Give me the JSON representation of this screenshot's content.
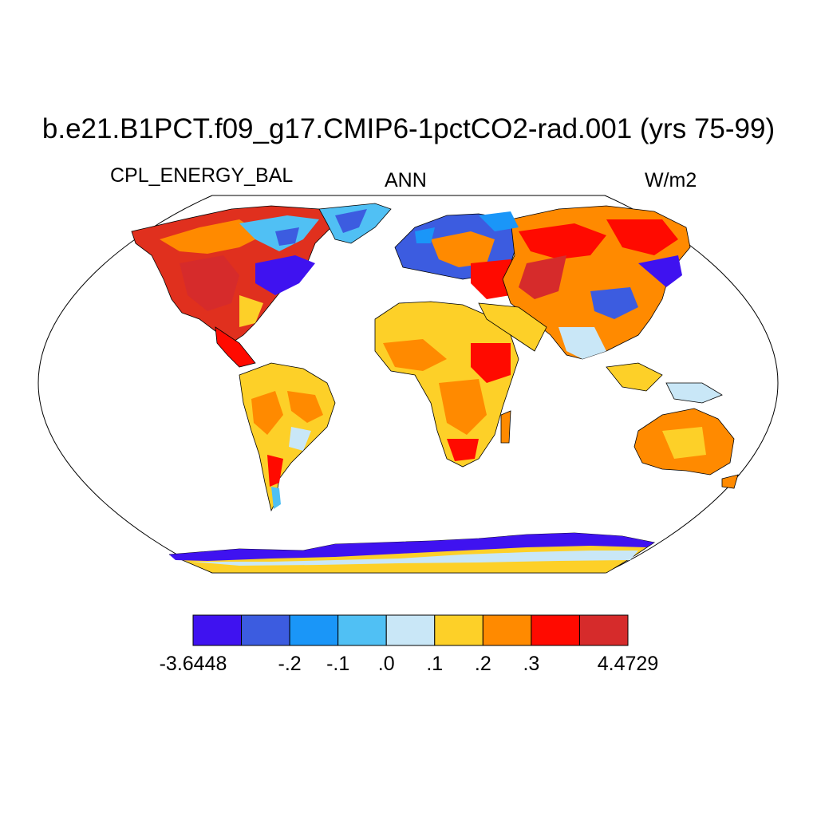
{
  "title": "b.e21.B1PCT.f09_g17.CMIP6-1pctCO2-rad.001 (yrs 75-99)",
  "left_label": "CPL_ENERGY_BAL",
  "center_label": "ANN",
  "right_label": "W/m2",
  "colorbar": {
    "colors": [
      "#3f12f0",
      "#3c5ce0",
      "#1a96f8",
      "#50c0f4",
      "#c9e7f7",
      "#fdd028",
      "#ff8a00",
      "#ff0a00",
      "#d62b2b"
    ],
    "labels": [
      "-3.6448",
      "-.2",
      "-.1",
      ".0",
      ".1",
      ".2",
      ".3",
      "4.4729"
    ]
  },
  "map": {
    "projection": "robinson",
    "features": [
      "north-america",
      "south-america",
      "greenland",
      "europe",
      "africa",
      "arabia",
      "asia",
      "india",
      "southeast-asia",
      "australia",
      "antarctica"
    ]
  }
}
